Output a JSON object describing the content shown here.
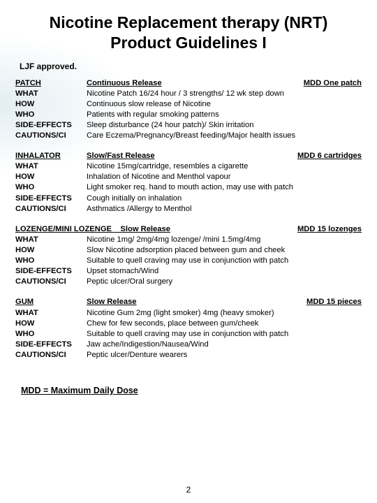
{
  "title": "Nicotine Replacement therapy (NRT) Product Guidelines I",
  "approved": "LJF approved.",
  "sections": [
    {
      "name": "PATCH",
      "release": "Continuous Release",
      "mdd": "MDD One patch",
      "rows": {
        "what": "Nicotine Patch 16/24 hour / 3 strengths/ 12 wk step down",
        "how": "Continuous slow  release of Nicotine",
        "who": "Patients with regular smoking patterns",
        "side": "Sleep disturbance (24 hour patch)/ Skin irritation",
        "caut": "Care Eczema/Pregnancy/Breast feeding/Major health issues"
      }
    },
    {
      "name": "INHALATOR",
      "release": "Slow/Fast Release",
      "mdd": "MDD 6 cartridges",
      "rows": {
        "what": "Nicotine 15mg/cartridge, resembles a cigarette",
        "how": "Inhalation of Nicotine and Menthol vapour",
        "who": "Light smoker req. hand to mouth action, may use with patch",
        "side": "Cough initially on inhalation",
        "caut": "Asthmatics /Allergy to Menthol"
      }
    },
    {
      "name_inline": "LOZENGE/MINI LOZENGE",
      "release": "Slow Release",
      "mdd": "MDD 15 lozenges",
      "rows": {
        "what": "Nicotine 1mg/ 2mg/4mg lozenge/ /mini 1.5mg/4mg",
        "how": "Slow Nicotine adsorption placed between gum and cheek",
        "who": "Suitable to quell craving may use in conjunction with patch",
        "side": "Upset stomach/Wind",
        "caut": "Peptic ulcer/Oral surgery"
      }
    },
    {
      "name": "GUM",
      "release": "Slow Release",
      "mdd": "MDD 15 pieces",
      "rows": {
        "what": "Nicotine Gum 2mg (light smoker) 4mg (heavy smoker)",
        "how": "Chew for few seconds, place between gum/cheek",
        "who": "Suitable to quell craving may use in conjunction with patch",
        "side": "Jaw ache/Indigestion/Nausea/Wind",
        "caut": "Peptic ulcer/Denture wearers"
      }
    }
  ],
  "labels": {
    "what": "WHAT",
    "how": "HOW",
    "who": "WHO",
    "side": "SIDE-EFFECTS",
    "caut": "CAUTIONS/CI"
  },
  "footnote": "MDD = Maximum Daily Dose",
  "page_number": "2"
}
